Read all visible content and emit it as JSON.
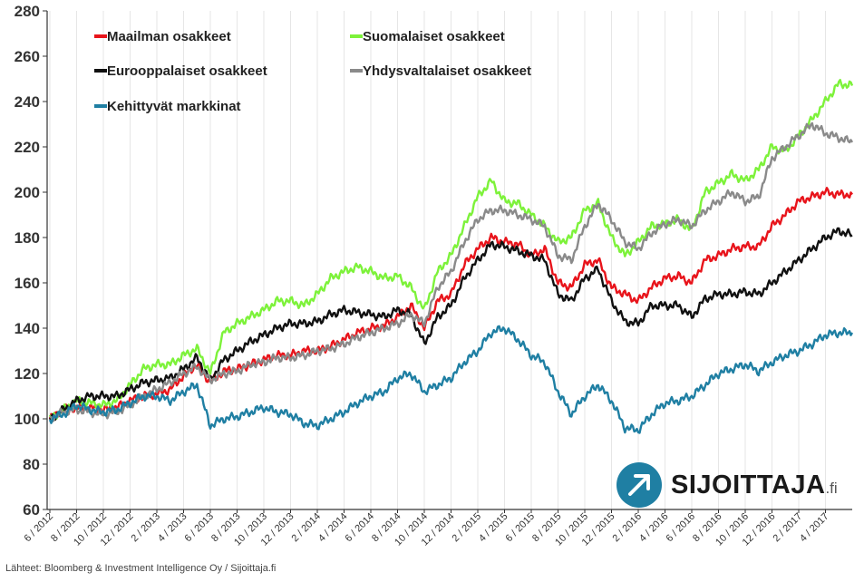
{
  "chart_data": {
    "type": "line",
    "title": "",
    "xlabel": "",
    "ylabel": "",
    "ylim": [
      60,
      280
    ],
    "yticks": [
      60,
      80,
      100,
      120,
      140,
      160,
      180,
      200,
      220,
      240,
      260,
      280
    ],
    "grid": "vertical",
    "legend": "top-left",
    "x_tick_labels": [
      "6 / 2012",
      "8 / 2012",
      "10 / 2012",
      "12 / 2012",
      "2 / 2013",
      "4 / 2013",
      "6 / 2013",
      "8 / 2013",
      "10 / 2013",
      "12 / 2013",
      "2 / 2014",
      "4 / 2014",
      "6 / 2014",
      "8 / 2014",
      "10 / 2014",
      "12 / 2014",
      "2 / 2015",
      "4 / 2015",
      "6 / 2015",
      "8 / 2015",
      "10 / 2015",
      "12 / 2015",
      "2 / 2016",
      "4 / 2016",
      "6 / 2016",
      "8 / 2016",
      "10 / 2016",
      "12 / 2016",
      "2 / 2017",
      "4 / 2017"
    ],
    "x": [
      "2012-06",
      "2012-07",
      "2012-08",
      "2012-09",
      "2012-10",
      "2012-11",
      "2012-12",
      "2013-01",
      "2013-02",
      "2013-03",
      "2013-04",
      "2013-05",
      "2013-06",
      "2013-07",
      "2013-08",
      "2013-09",
      "2013-10",
      "2013-11",
      "2013-12",
      "2014-01",
      "2014-02",
      "2014-03",
      "2014-04",
      "2014-05",
      "2014-06",
      "2014-07",
      "2014-08",
      "2014-09",
      "2014-10",
      "2014-11",
      "2014-12",
      "2015-01",
      "2015-02",
      "2015-03",
      "2015-04",
      "2015-05",
      "2015-06",
      "2015-07",
      "2015-08",
      "2015-09",
      "2015-10",
      "2015-11",
      "2015-12",
      "2016-01",
      "2016-02",
      "2016-03",
      "2016-04",
      "2016-05",
      "2016-06",
      "2016-07",
      "2016-08",
      "2016-09",
      "2016-10",
      "2016-11",
      "2016-12",
      "2017-01",
      "2017-02",
      "2017-03",
      "2017-04",
      "2017-05",
      "2017-06"
    ],
    "series": [
      {
        "name": "Maailman osakkeet",
        "color": "#e8141b",
        "values": [
          100,
          104,
          105,
          105,
          104,
          105,
          108,
          110,
          111,
          113,
          119,
          124,
          116,
          121,
          122,
          124,
          126,
          128,
          128,
          130,
          130,
          132,
          135,
          138,
          140,
          141,
          145,
          150,
          140,
          152,
          155,
          168,
          175,
          180,
          178,
          177,
          172,
          175,
          160,
          158,
          168,
          170,
          158,
          155,
          152,
          158,
          162,
          163,
          160,
          170,
          172,
          175,
          176,
          176,
          185,
          190,
          196,
          198,
          200,
          199,
          199
        ]
      },
      {
        "name": "Suomalaiset osakkeet",
        "color": "#7df23a",
        "values": [
          100,
          104,
          108,
          107,
          106,
          108,
          115,
          122,
          124,
          124,
          128,
          131,
          120,
          138,
          142,
          145,
          148,
          152,
          152,
          150,
          155,
          162,
          165,
          167,
          165,
          162,
          163,
          158,
          148,
          165,
          172,
          185,
          198,
          205,
          196,
          195,
          190,
          185,
          178,
          180,
          192,
          195,
          180,
          172,
          178,
          185,
          186,
          188,
          183,
          200,
          204,
          208,
          205,
          210,
          220,
          218,
          225,
          232,
          240,
          248,
          247
        ]
      },
      {
        "name": "Eurooppalaiset osakkeet",
        "color": "#111111",
        "values": [
          100,
          104,
          108,
          110,
          110,
          110,
          113,
          116,
          117,
          118,
          122,
          127,
          117,
          126,
          130,
          134,
          137,
          140,
          142,
          142,
          143,
          146,
          148,
          147,
          146,
          145,
          148,
          146,
          133,
          145,
          150,
          162,
          170,
          177,
          176,
          174,
          172,
          170,
          155,
          152,
          162,
          166,
          152,
          143,
          142,
          150,
          150,
          150,
          145,
          153,
          155,
          155,
          156,
          155,
          160,
          165,
          170,
          175,
          180,
          183,
          181
        ]
      },
      {
        "name": "Yhdysvaltalaiset osakkeet",
        "color": "#8a8a8a",
        "values": [
          100,
          103,
          104,
          103,
          102,
          103,
          106,
          110,
          113,
          116,
          120,
          123,
          117,
          120,
          121,
          124,
          125,
          127,
          127,
          128,
          130,
          131,
          133,
          136,
          138,
          140,
          142,
          146,
          142,
          158,
          165,
          178,
          188,
          192,
          192,
          190,
          188,
          185,
          172,
          170,
          185,
          195,
          188,
          178,
          175,
          182,
          186,
          188,
          185,
          192,
          196,
          200,
          196,
          198,
          215,
          220,
          225,
          230,
          226,
          224,
          222
        ]
      },
      {
        "name": "Kehittyvät markkinat",
        "color": "#1f7fa3",
        "values": [
          100,
          102,
          106,
          104,
          103,
          104,
          107,
          110,
          110,
          108,
          112,
          115,
          97,
          100,
          101,
          103,
          105,
          103,
          102,
          98,
          97,
          100,
          103,
          107,
          110,
          112,
          118,
          120,
          112,
          115,
          118,
          125,
          130,
          138,
          140,
          135,
          128,
          125,
          112,
          102,
          110,
          115,
          108,
          96,
          95,
          102,
          107,
          108,
          110,
          115,
          120,
          122,
          124,
          121,
          125,
          128,
          130,
          133,
          137,
          138,
          138
        ]
      }
    ]
  },
  "source_text": "Lähteet: Bloomberg & Investment Intelligence Oy / Sijoittaja.fi",
  "logo": {
    "word": "SIJOITTAJA",
    "suffix": ".fi",
    "circle_color": "#1f7fa3",
    "arrow_icon": "arrow-up-right-icon"
  }
}
